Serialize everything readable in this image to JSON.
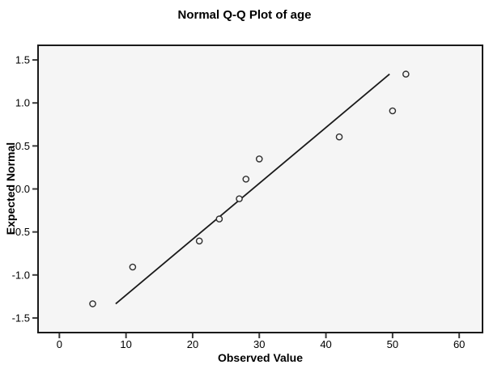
{
  "chart_data": {
    "type": "scatter",
    "title": "Normal Q-Q Plot of age",
    "xlabel": "Observed Value",
    "ylabel": "Expected Normal",
    "x_ticks": [
      {
        "label": "0",
        "value": 0
      },
      {
        "label": "10",
        "value": 10
      },
      {
        "label": "20",
        "value": 20
      },
      {
        "label": "30",
        "value": 30
      },
      {
        "label": "40",
        "value": 40
      },
      {
        "label": "50",
        "value": 50
      },
      {
        "label": "60",
        "value": 60
      }
    ],
    "y_ticks": [
      {
        "label": "1.5",
        "value": 1.5
      },
      {
        "label": "1.0",
        "value": 1.0
      },
      {
        "label": "0.5",
        "value": 0.5
      },
      {
        "label": "0.0",
        "value": 0.0
      },
      {
        "label": "-0.5",
        "value": -0.5
      },
      {
        "label": "-1.0",
        "value": -1.0
      },
      {
        "label": "-1.5",
        "value": -1.5
      }
    ],
    "xlim": [
      -3.2,
      63.5
    ],
    "ylim": [
      -1.67,
      1.67
    ],
    "grid": false,
    "legend": "none",
    "points": [
      {
        "observed": 5,
        "expected": -1.335
      },
      {
        "observed": 11,
        "expected": -0.908
      },
      {
        "observed": 21,
        "expected": -0.605
      },
      {
        "observed": 24,
        "expected": -0.349
      },
      {
        "observed": 27,
        "expected": -0.114
      },
      {
        "observed": 28,
        "expected": 0.114
      },
      {
        "observed": 30,
        "expected": 0.349
      },
      {
        "observed": 42,
        "expected": 0.605
      },
      {
        "observed": 50,
        "expected": 0.908
      },
      {
        "observed": 52,
        "expected": 1.335
      }
    ],
    "reference_line": {
      "x1": 8.45,
      "y1": -1.335,
      "x2": 49.55,
      "y2": 1.335
    },
    "colors": {
      "page_background": "#ffffff",
      "plot_background": "#f5f5f5",
      "frame": "#1a1a1a",
      "tick": "#3a3a3a",
      "tick_text": "#000000",
      "marker": "#2e2e2e",
      "line": "#1a1a1a"
    }
  }
}
